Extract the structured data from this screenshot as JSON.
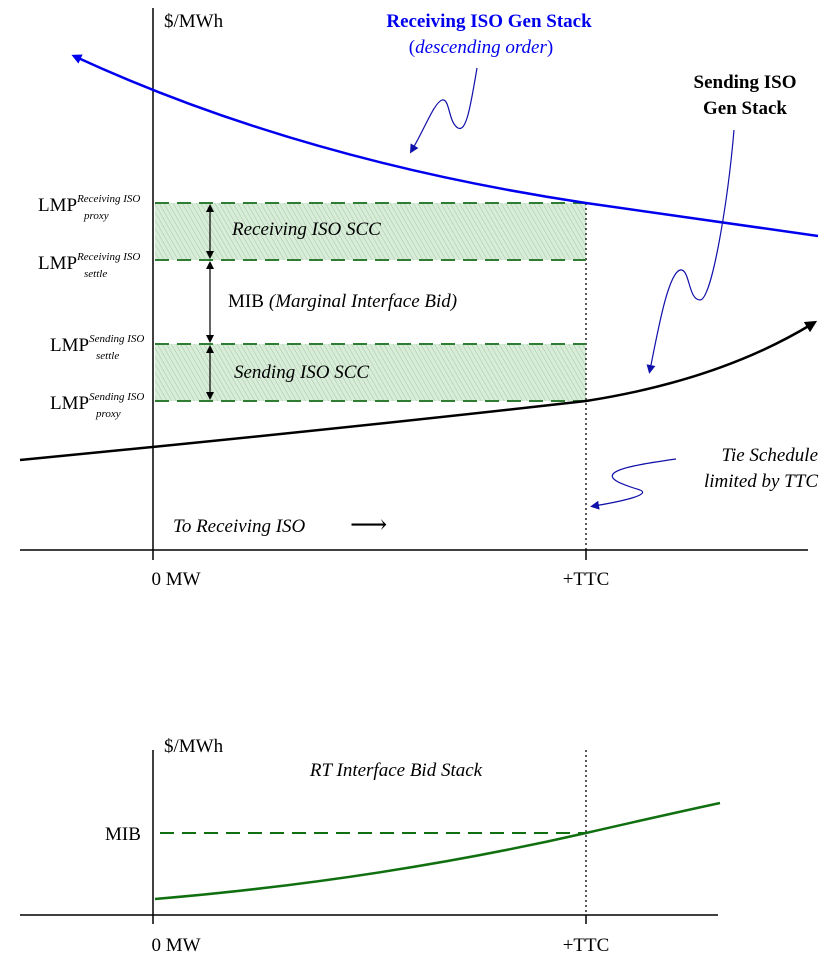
{
  "top": {
    "y_axis_label": "$/MWh",
    "x_tick_zero": "0 MW",
    "x_tick_ttc": "+TTC",
    "receiving_stack_title": "Receiving ISO Gen Stack",
    "receiving_stack_paren_open": "(",
    "receiving_stack_note": "descending order",
    "receiving_stack_paren_close": ")",
    "sending_stack_title_line1": "Sending ISO",
    "sending_stack_title_line2": "Gen Stack",
    "lmp_base": "LMP",
    "lmp_recv_proxy_sup": "Receiving ISO",
    "lmp_recv_proxy_sub": "proxy",
    "lmp_recv_settle_sup": "Receiving ISO",
    "lmp_recv_settle_sub": "settle",
    "lmp_send_settle_sup": "Sending ISO",
    "lmp_send_settle_sub": "settle",
    "lmp_send_proxy_sup": "Sending ISO",
    "lmp_send_proxy_sub": "proxy",
    "receiving_scc": "Receiving ISO SCC",
    "sending_scc": "Sending ISO SCC",
    "mib_text": "MIB",
    "mib_paren": "(Marginal Interface Bid)",
    "tie_line1": "Tie Schedule",
    "tie_line2": "limited by TTC",
    "direction_text": "To Receiving ISO",
    "direction_arrow": "⟶"
  },
  "bottom": {
    "y_axis_label": "$/MWh",
    "mib_label": "MIB",
    "stack_title": "RT Interface Bid Stack",
    "x_tick_zero": "0 MW",
    "x_tick_ttc": "+TTC"
  },
  "colors": {
    "receiving_curve": "#0000ee",
    "sending_curve": "#000000",
    "scc_band": "#2e7d32",
    "bid_curve": "#107010",
    "callout": "#1010aa"
  }
}
